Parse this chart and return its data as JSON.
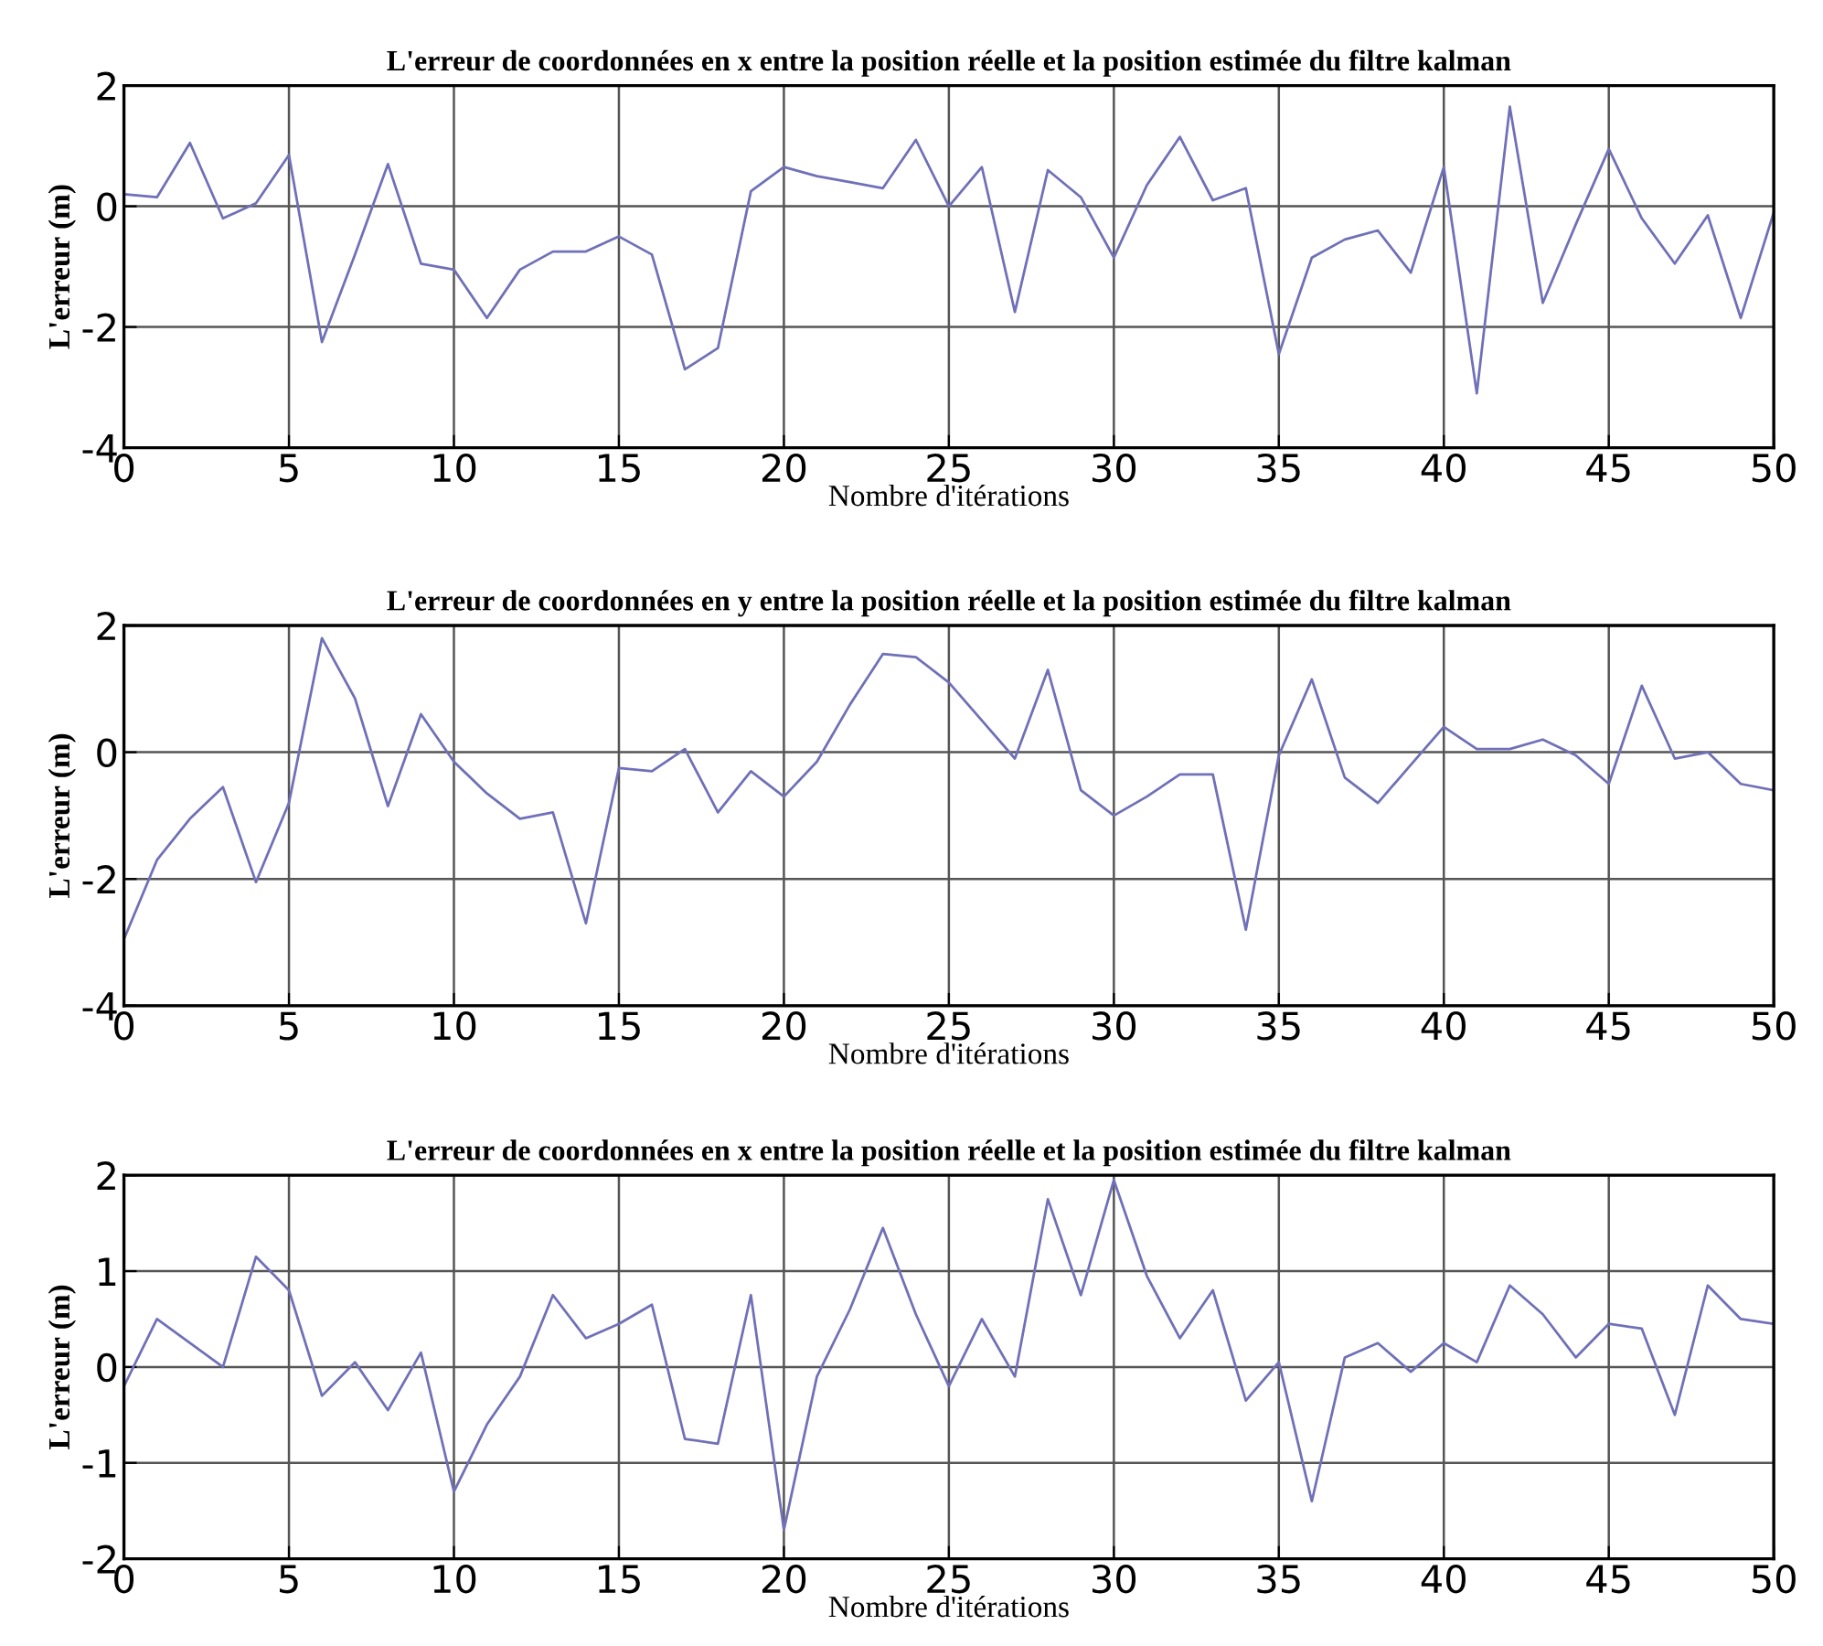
{
  "chart_data": [
    {
      "type": "line",
      "title": "L'erreur de coordonnées en x entre la position réelle et la position estimée du filtre kalman",
      "xlabel": "Nombre d'itérations",
      "ylabel": "L'erreur (m)",
      "x": [
        0,
        1,
        2,
        3,
        4,
        5,
        6,
        7,
        8,
        9,
        10,
        11,
        12,
        13,
        14,
        15,
        16,
        17,
        18,
        19,
        20,
        21,
        22,
        23,
        24,
        25,
        26,
        27,
        28,
        29,
        30,
        31,
        32,
        33,
        34,
        35,
        36,
        37,
        38,
        39,
        40,
        41,
        42,
        43,
        44,
        45,
        46,
        47,
        48,
        49,
        50
      ],
      "series": [
        {
          "color": "#7070b8",
          "values": [
            0.2,
            0.15,
            1.05,
            -0.2,
            0.05,
            0.85,
            -2.25,
            -0.8,
            0.7,
            -0.95,
            -1.05,
            -1.85,
            -1.05,
            -0.75,
            -0.75,
            -0.5,
            -0.8,
            -2.7,
            -2.35,
            0.25,
            0.65,
            0.5,
            0.4,
            0.3,
            1.1,
            0.0,
            0.65,
            -1.75,
            0.6,
            0.15,
            -0.85,
            0.35,
            1.15,
            0.1,
            0.3,
            -2.45,
            -0.85,
            -0.55,
            -0.4,
            -1.1,
            0.65,
            -3.1,
            1.65,
            -1.6,
            -0.3,
            0.95,
            -0.2,
            -0.95,
            -0.15,
            -1.85,
            -0.1
          ]
        }
      ],
      "xlim": [
        0,
        50
      ],
      "xticks": [
        0,
        5,
        10,
        15,
        20,
        25,
        30,
        35,
        40,
        45,
        50
      ],
      "ylim": [
        -4,
        2
      ],
      "yticks": [
        -4,
        -2,
        0,
        2
      ],
      "grid": true,
      "line_style": "solid"
    },
    {
      "type": "line",
      "title": "L'erreur de coordonnées en y entre la position réelle et la position estimée du filtre kalman",
      "xlabel": "Nombre d'itérations",
      "ylabel": "L'erreur (m)",
      "x": [
        0,
        1,
        2,
        3,
        4,
        5,
        6,
        7,
        8,
        9,
        10,
        11,
        12,
        13,
        14,
        15,
        16,
        17,
        18,
        19,
        20,
        21,
        22,
        23,
        24,
        25,
        26,
        27,
        28,
        29,
        30,
        31,
        32,
        33,
        34,
        35,
        36,
        37,
        38,
        39,
        40,
        41,
        42,
        43,
        44,
        45,
        46,
        47,
        48,
        49,
        50
      ],
      "series": [
        {
          "color": "#7070b8",
          "values": [
            -2.95,
            -1.7,
            -1.05,
            -0.55,
            -2.05,
            -0.8,
            1.8,
            0.85,
            -0.85,
            0.6,
            -0.15,
            -0.65,
            -1.05,
            -0.95,
            -2.7,
            -0.25,
            -0.3,
            0.05,
            -0.95,
            -0.3,
            -0.7,
            -0.15,
            0.75,
            1.55,
            1.5,
            1.1,
            0.5,
            -0.1,
            1.3,
            -0.6,
            -1.0,
            -0.7,
            -0.35,
            -0.35,
            -2.8,
            -0.05,
            1.15,
            -0.4,
            -0.8,
            -0.2,
            0.4,
            0.05,
            0.05,
            0.2,
            -0.05,
            -0.5,
            1.05,
            -0.1,
            0.0,
            -0.5,
            -0.6
          ]
        }
      ],
      "xlim": [
        0,
        50
      ],
      "xticks": [
        0,
        5,
        10,
        15,
        20,
        25,
        30,
        35,
        40,
        45,
        50
      ],
      "ylim": [
        -4,
        2
      ],
      "yticks": [
        -4,
        -2,
        0,
        2
      ],
      "grid": true,
      "line_style": "solid"
    },
    {
      "type": "line",
      "title": "L'erreur de coordonnées en x entre la position réelle et la position estimée du filtre kalman",
      "xlabel": "Nombre d'itérations",
      "ylabel": "L'erreur (m)",
      "x": [
        0,
        1,
        2,
        3,
        4,
        5,
        6,
        7,
        8,
        9,
        10,
        11,
        12,
        13,
        14,
        15,
        16,
        17,
        18,
        19,
        20,
        21,
        22,
        23,
        24,
        25,
        26,
        27,
        28,
        29,
        30,
        31,
        32,
        33,
        34,
        35,
        36,
        37,
        38,
        39,
        40,
        41,
        42,
        43,
        44,
        45,
        46,
        47,
        48,
        49,
        50
      ],
      "series": [
        {
          "color": "#7070b8",
          "values": [
            -0.2,
            0.5,
            0.25,
            0.0,
            1.15,
            0.8,
            -0.3,
            0.05,
            -0.45,
            0.15,
            -1.3,
            -0.6,
            -0.1,
            0.75,
            0.3,
            0.45,
            0.65,
            -0.75,
            -0.8,
            0.75,
            -1.7,
            -0.1,
            0.6,
            1.45,
            0.55,
            -0.2,
            0.5,
            -0.1,
            1.75,
            0.75,
            1.95,
            0.95,
            0.3,
            0.8,
            -0.35,
            0.05,
            -1.4,
            0.1,
            0.25,
            -0.05,
            0.25,
            0.05,
            0.85,
            0.55,
            0.1,
            0.45,
            0.4,
            -0.5,
            0.85,
            0.5,
            0.45
          ]
        }
      ],
      "xlim": [
        0,
        50
      ],
      "xticks": [
        0,
        5,
        10,
        15,
        20,
        25,
        30,
        35,
        40,
        45,
        50
      ],
      "ylim": [
        -2,
        2
      ],
      "yticks": [
        -2,
        -1,
        0,
        1,
        2
      ],
      "grid": true,
      "line_style": "solid"
    }
  ]
}
